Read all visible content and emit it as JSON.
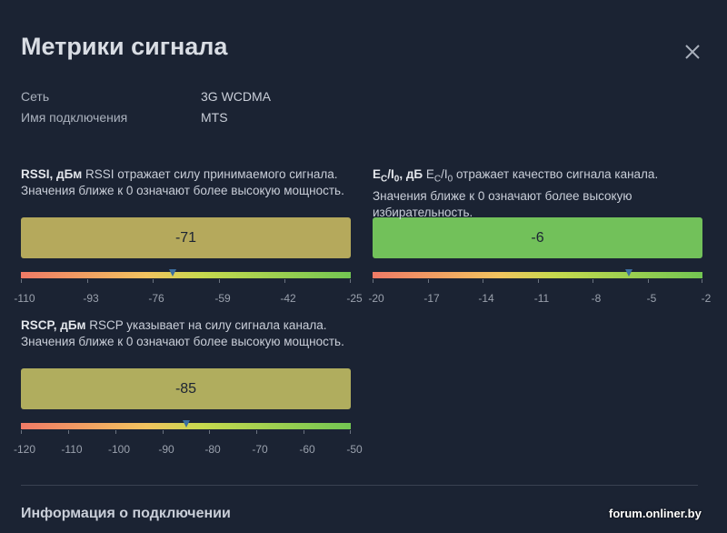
{
  "dialog": {
    "title": "Метрики сигнала",
    "close_icon": "close-icon"
  },
  "info": [
    {
      "label": "Сеть",
      "value": "3G WCDMA"
    },
    {
      "label": "Имя подключения",
      "value": "MTS"
    }
  ],
  "metrics": {
    "rssi": {
      "name": "RSSI, дБм",
      "description": "RSSI отражает силу принимаемого сигнала. Значения ближе к 0 означают более высокую мощность.",
      "value": "-71",
      "numeric_value": -71,
      "box_color": "#b5a95c",
      "scale_min": -110,
      "scale_max": -25,
      "ticks": [
        "-110",
        "-93",
        "-76",
        "-59",
        "-42",
        "-25"
      ]
    },
    "ecio": {
      "name_prefix": "E",
      "name_sub1": "C",
      "name_mid": "/I",
      "name_sub2": "0",
      "name_suffix": ", дБ",
      "desc_prefix": "E",
      "desc_sub1": "C",
      "desc_mid": "/I",
      "desc_sub2": "0",
      "description": " отражает качество сигнала канала. Значения ближе к 0 означают более высокую избирательность.",
      "value": "-6",
      "numeric_value": -6,
      "box_color": "#72c15a",
      "scale_min": -20,
      "scale_max": -2,
      "ticks": [
        "-20",
        "-17",
        "-14",
        "-11",
        "-8",
        "-5",
        "-2"
      ]
    },
    "rscp": {
      "name": "RSCP, дБм",
      "description": "RSCP указывает на силу сигнала канала. Значения ближе к 0 означают более высокую мощность.",
      "value": "-85",
      "numeric_value": -85,
      "box_color": "#b0ad5e",
      "scale_min": -120,
      "scale_max": -50,
      "ticks": [
        "-120",
        "-110",
        "-100",
        "-90",
        "-80",
        "-70",
        "-60",
        "-50"
      ]
    }
  },
  "section": {
    "title": "Информация о подключении"
  },
  "watermark": "forum.onliner.by"
}
